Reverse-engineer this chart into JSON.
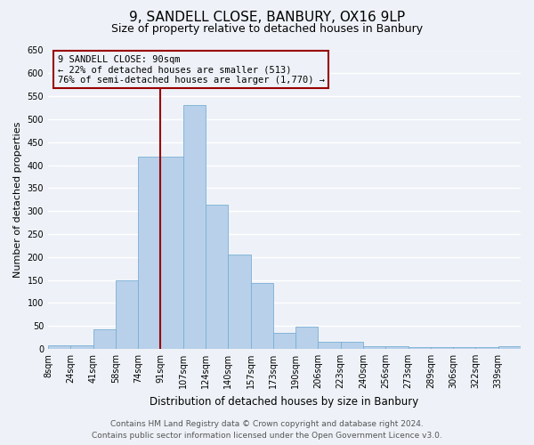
{
  "title": "9, SANDELL CLOSE, BANBURY, OX16 9LP",
  "subtitle": "Size of property relative to detached houses in Banbury",
  "xlabel": "Distribution of detached houses by size in Banbury",
  "ylabel": "Number of detached properties",
  "bin_labels": [
    "8sqm",
    "24sqm",
    "41sqm",
    "58sqm",
    "74sqm",
    "91sqm",
    "107sqm",
    "124sqm",
    "140sqm",
    "157sqm",
    "173sqm",
    "190sqm",
    "206sqm",
    "223sqm",
    "240sqm",
    "256sqm",
    "273sqm",
    "289sqm",
    "306sqm",
    "322sqm",
    "339sqm"
  ],
  "bar_heights": [
    8,
    8,
    43,
    150,
    418,
    418,
    530,
    313,
    205,
    143,
    35,
    48,
    15,
    15,
    5,
    5,
    3,
    3,
    3,
    3,
    5
  ],
  "bar_color": "#b8d0ea",
  "bar_edgecolor": "#7aafd4",
  "ylim": [
    0,
    650
  ],
  "yticks": [
    0,
    50,
    100,
    150,
    200,
    250,
    300,
    350,
    400,
    450,
    500,
    550,
    600,
    650
  ],
  "vline_x_index": 5,
  "vline_color": "#990000",
  "annotation_box_line1": "9 SANDELL CLOSE: 90sqm",
  "annotation_box_line2": "← 22% of detached houses are smaller (513)",
  "annotation_box_line3": "76% of semi-detached houses are larger (1,770) →",
  "annotation_box_color": "#990000",
  "footer_line1": "Contains HM Land Registry data © Crown copyright and database right 2024.",
  "footer_line2": "Contains public sector information licensed under the Open Government Licence v3.0.",
  "background_color": "#eef2f8",
  "grid_color": "#ffffff",
  "title_fontsize": 11,
  "subtitle_fontsize": 9,
  "xlabel_fontsize": 8.5,
  "ylabel_fontsize": 8,
  "tick_fontsize": 7,
  "footer_fontsize": 6.5,
  "annot_fontsize": 7.5
}
